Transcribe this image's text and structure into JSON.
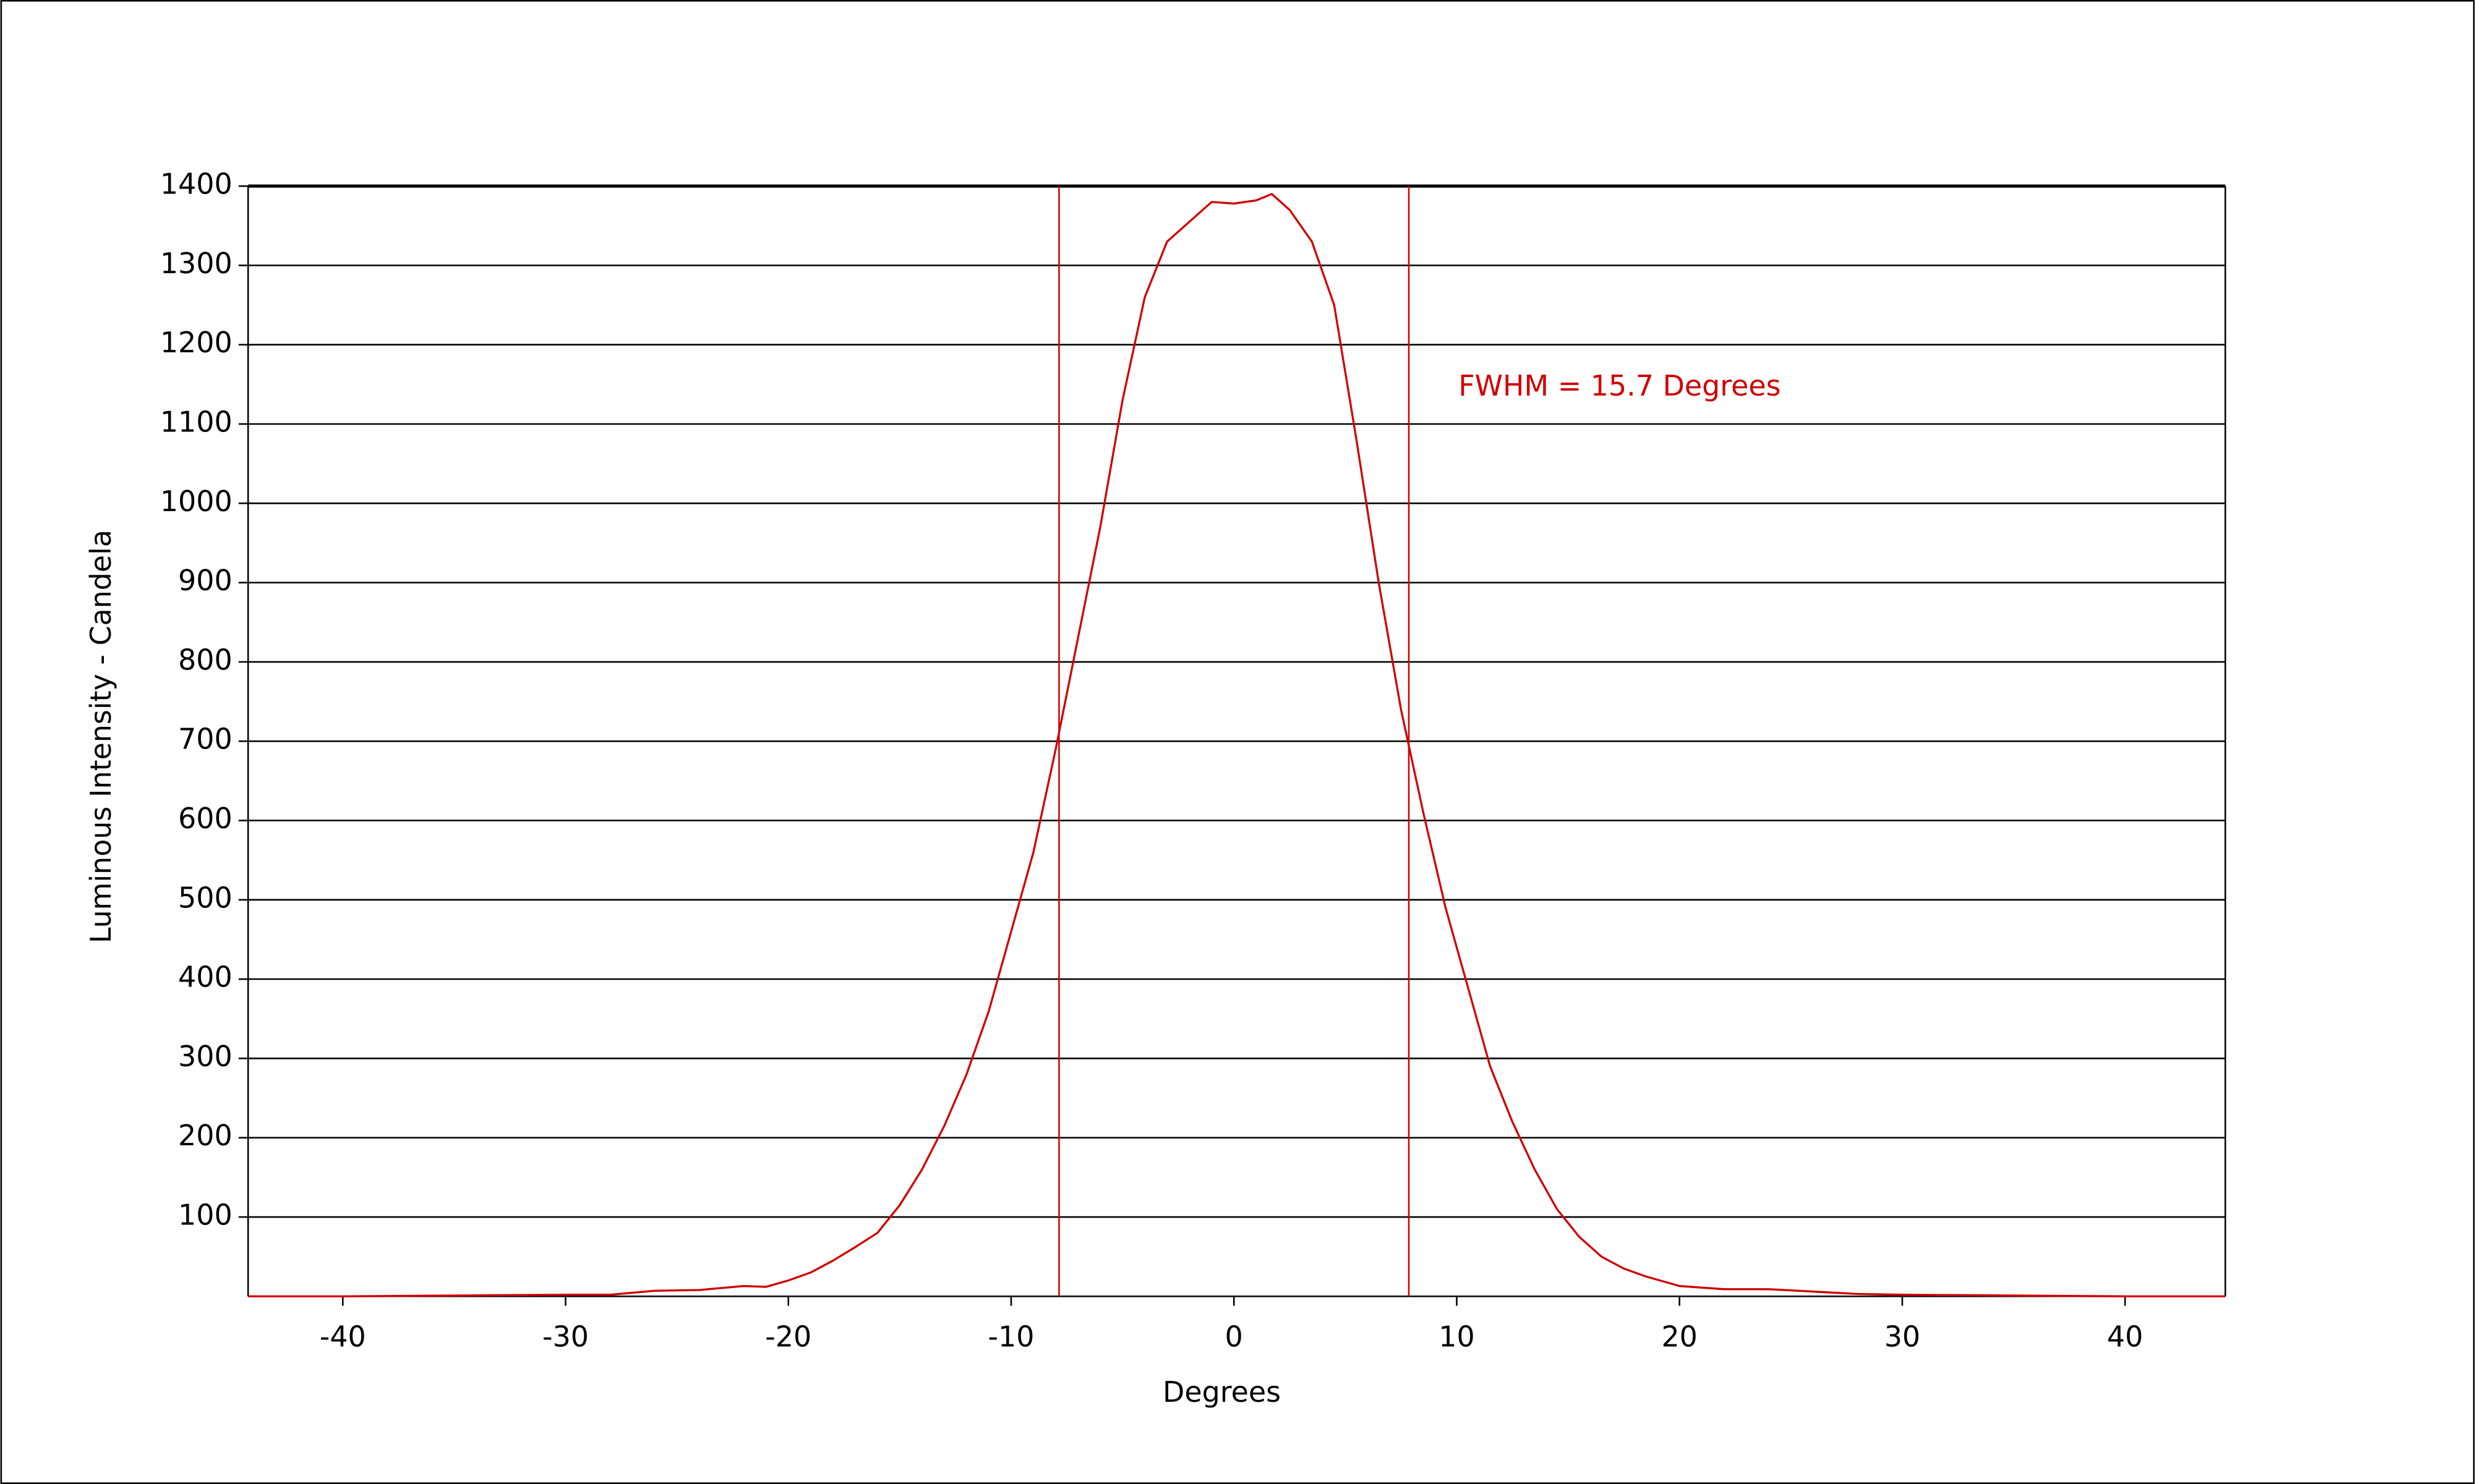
{
  "chart_data": {
    "type": "line",
    "x_label": "Degrees",
    "y_label": "Luminous Intensity - Candela",
    "annotation": "FWHM = 15.7 Degrees",
    "x": [
      -44.25,
      -40,
      -35,
      -30,
      -28,
      -26,
      -24,
      -22,
      -21,
      -20,
      -19,
      -18,
      -17,
      -16,
      -15,
      -14,
      -13,
      -12,
      -11,
      -10,
      -9,
      -8,
      -7,
      -6,
      -5,
      -4,
      -3,
      -2,
      -1,
      0,
      1,
      1.7,
      2.5,
      3.5,
      4.5,
      5.5,
      6.5,
      7.5,
      8.5,
      9.5,
      10.5,
      11.5,
      12.5,
      13.5,
      14.5,
      15.5,
      16.5,
      17.5,
      18.5,
      20,
      22,
      24,
      26,
      28,
      30,
      35,
      40,
      44.5
    ],
    "series": [
      {
        "color": "#d00000",
        "values": [
          0,
          0,
          1,
          2,
          2,
          7,
          8,
          13,
          12,
          20,
          30,
          45,
          62,
          80,
          115,
          160,
          215,
          280,
          360,
          460,
          560,
          690,
          830,
          970,
          1130,
          1260,
          1330,
          1355,
          1380,
          1378,
          1382,
          1390,
          1370,
          1330,
          1250,
          1080,
          900,
          740,
          610,
          490,
          390,
          290,
          220,
          160,
          110,
          75,
          50,
          35,
          25,
          13,
          9,
          9,
          6,
          3,
          2,
          1,
          0,
          0
        ]
      }
    ],
    "fwhm_lines": [
      -7.85,
      7.85
    ],
    "xlim": [
      -44.25,
      44.5
    ],
    "ylim": [
      0,
      1400
    ],
    "xticks": [
      -40,
      -30,
      -20,
      -10,
      0,
      10,
      20,
      30,
      40
    ],
    "yticks": [
      100,
      200,
      300,
      400,
      500,
      600,
      700,
      800,
      900,
      1000,
      1100,
      1200,
      1300,
      1400
    ],
    "grid": true
  }
}
